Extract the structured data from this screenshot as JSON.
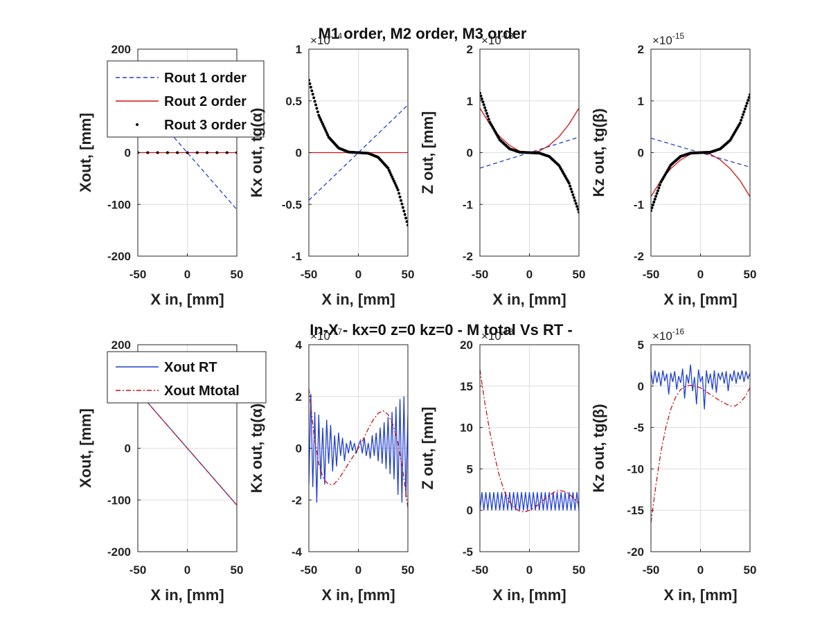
{
  "figure": {
    "top_title": "M1 order, M2 order, M3 order",
    "bottom_title": "In-X - kx=0   z=0   kz=0 - M total Vs RT -"
  },
  "chart_data": [
    {
      "id": "p1",
      "type": "line",
      "xlabel": "X in, [mm]",
      "ylabel": "Xout, [mm]",
      "xlim": [
        -50,
        50
      ],
      "ylim": [
        -200,
        200
      ],
      "xticks": [
        -50,
        0,
        50
      ],
      "yticks": [
        -200,
        -100,
        0,
        100,
        200
      ],
      "ytick_labels": [
        "-200",
        "-100",
        "0",
        "",
        "200"
      ],
      "grid": true,
      "exponent": "",
      "legend": {
        "location": "top-left",
        "entries": [
          "Rout 1 order",
          "Rout 2 order",
          "Rout 3 order"
        ]
      },
      "series": [
        {
          "name": "Rout 1 order",
          "style": "dashed",
          "color": "#1f3fd1",
          "x": [
            -50,
            50
          ],
          "y": [
            110,
            -110
          ]
        },
        {
          "name": "Rout 2 order",
          "style": "solid",
          "color": "#cc1111",
          "x": [
            -50,
            50
          ],
          "y": [
            0,
            0
          ]
        },
        {
          "name": "Rout 3 order",
          "style": "dots",
          "color": "#000000",
          "x": [
            -50,
            50
          ],
          "y": [
            0,
            0
          ]
        }
      ]
    },
    {
      "id": "p2",
      "type": "line",
      "xlabel": "X in, [mm]",
      "ylabel": "Kx out, tg(α)",
      "xlim": [
        -50,
        50
      ],
      "ylim": [
        -1,
        1
      ],
      "xticks": [
        -50,
        0,
        50
      ],
      "yticks": [
        -1,
        -0.5,
        0,
        0.5,
        1
      ],
      "ytick_labels": [
        "-1",
        "-0.5",
        "0",
        "0.5",
        "1"
      ],
      "grid": true,
      "exponent": {
        "base": "×10",
        "power": "-14"
      },
      "series": [
        {
          "name": "Rout 1 order",
          "style": "dashed",
          "color": "#1f3fd1",
          "x": [
            -50,
            50
          ],
          "y": [
            -0.46,
            0.46
          ]
        },
        {
          "name": "Rout 2 order",
          "style": "solid",
          "color": "#cc1111",
          "x": [
            -50,
            50
          ],
          "y": [
            0,
            0
          ]
        },
        {
          "name": "Rout 3 order",
          "style": "dots",
          "color": "#000000",
          "x": [
            -50,
            -40,
            -30,
            -20,
            -10,
            0,
            10,
            20,
            30,
            40,
            50
          ],
          "y": [
            0.7,
            0.36,
            0.15,
            0.045,
            0.006,
            0,
            -0.006,
            -0.045,
            -0.15,
            -0.36,
            -0.7
          ]
        }
      ]
    },
    {
      "id": "p3",
      "type": "line",
      "xlabel": "X in, [mm]",
      "ylabel": "Z out, [mm]",
      "xlim": [
        -50,
        50
      ],
      "ylim": [
        -2,
        2
      ],
      "xticks": [
        -50,
        0,
        50
      ],
      "yticks": [
        -2,
        -1,
        0,
        1,
        2
      ],
      "ytick_labels": [
        "-2",
        "-1",
        "0",
        "1",
        "2"
      ],
      "grid": true,
      "exponent": {
        "base": "×10",
        "power": "-13"
      },
      "series": [
        {
          "name": "Rout 1 order",
          "style": "dashed",
          "color": "#1f3fd1",
          "x": [
            -50,
            50
          ],
          "y": [
            -0.3,
            0.3
          ]
        },
        {
          "name": "Rout 2 order",
          "style": "solid",
          "color": "#cc1111",
          "x": [
            -50,
            -40,
            -30,
            -20,
            -10,
            0,
            10,
            20,
            30,
            40,
            50
          ],
          "y": [
            0.86,
            0.55,
            0.31,
            0.14,
            0.03,
            0,
            0.03,
            0.14,
            0.31,
            0.55,
            0.86
          ]
        },
        {
          "name": "Rout 3 order",
          "style": "dots",
          "color": "#000000",
          "x": [
            -50,
            -40,
            -30,
            -20,
            -10,
            0,
            10,
            20,
            30,
            40,
            50
          ],
          "y": [
            1.15,
            0.59,
            0.25,
            0.074,
            0.009,
            0,
            -0.009,
            -0.074,
            -0.25,
            -0.59,
            -1.15
          ]
        }
      ]
    },
    {
      "id": "p4",
      "type": "line",
      "xlabel": "X in, [mm]",
      "ylabel": "Kz out, tg(β)",
      "xlim": [
        -50,
        50
      ],
      "ylim": [
        -2,
        2
      ],
      "xticks": [
        -50,
        0,
        50
      ],
      "yticks": [
        -2,
        -1,
        0,
        1,
        2
      ],
      "ytick_labels": [
        "-2",
        "-1",
        "0",
        "1",
        "2"
      ],
      "grid": true,
      "exponent": {
        "base": "×10",
        "power": "-15"
      },
      "series": [
        {
          "name": "Rout 1 order",
          "style": "dashed",
          "color": "#1f3fd1",
          "x": [
            -50,
            50
          ],
          "y": [
            0.28,
            -0.28
          ]
        },
        {
          "name": "Rout 2 order",
          "style": "solid",
          "color": "#cc1111",
          "x": [
            -50,
            -40,
            -30,
            -20,
            -10,
            0,
            10,
            20,
            30,
            40,
            50
          ],
          "y": [
            -0.85,
            -0.54,
            -0.31,
            -0.14,
            -0.03,
            0,
            -0.03,
            -0.14,
            -0.31,
            -0.54,
            -0.85
          ]
        },
        {
          "name": "Rout 3 order",
          "style": "dots",
          "color": "#000000",
          "x": [
            -50,
            -40,
            -30,
            -20,
            -10,
            0,
            10,
            20,
            30,
            40,
            50
          ],
          "y": [
            -1.12,
            -0.57,
            -0.24,
            -0.072,
            -0.009,
            0,
            0.009,
            0.072,
            0.24,
            0.57,
            1.12
          ]
        }
      ]
    },
    {
      "id": "p5",
      "type": "line",
      "xlabel": "X in, [mm]",
      "ylabel": "Xout, [mm]",
      "xlim": [
        -50,
        50
      ],
      "ylim": [
        -200,
        200
      ],
      "xticks": [
        -50,
        0,
        50
      ],
      "yticks": [
        -200,
        -100,
        0,
        100,
        200
      ],
      "ytick_labels": [
        "-200",
        "-100",
        "0",
        "",
        "200"
      ],
      "grid": true,
      "exponent": "",
      "legend": {
        "location": "top-left",
        "entries": [
          "Xout RT",
          "Xout  Mtotal"
        ]
      },
      "series": [
        {
          "name": "Xout RT",
          "style": "solid",
          "color": "#1f3fd1",
          "x": [
            -50,
            50
          ],
          "y": [
            110,
            -110
          ]
        },
        {
          "name": "Xout  Mtotal",
          "style": "dashdot",
          "color": "#cc1111",
          "x": [
            -50,
            50
          ],
          "y": [
            110,
            -110
          ]
        }
      ]
    },
    {
      "id": "p6",
      "type": "line",
      "xlabel": "X in, [mm]",
      "ylabel": "Kx out,  tg(α)",
      "xlim": [
        -50,
        50
      ],
      "ylim": [
        -4,
        4
      ],
      "xticks": [
        -50,
        0,
        50
      ],
      "yticks": [
        -4,
        -2,
        0,
        2,
        4
      ],
      "ytick_labels": [
        "-4",
        "-2",
        "0",
        "2",
        "4"
      ],
      "grid": true,
      "exponent": {
        "base": "×10",
        "power": "-17"
      },
      "series": [
        {
          "name": "Xout RT",
          "style": "solid",
          "color": "#1f3fd1",
          "x": [
            -50,
            -48,
            -46,
            -44,
            -42,
            -40,
            -38,
            -36,
            -34,
            -32,
            -30,
            -28,
            -26,
            -24,
            -22,
            -20,
            -18,
            -16,
            -14,
            -12,
            -10,
            -8,
            -6,
            -4,
            -2,
            0,
            2,
            4,
            6,
            8,
            10,
            12,
            14,
            16,
            18,
            20,
            22,
            24,
            26,
            28,
            30,
            32,
            34,
            36,
            38,
            40,
            42,
            44,
            46,
            48,
            50
          ],
          "y": [
            -1.4,
            2.1,
            -1.5,
            1.4,
            -2.1,
            1.3,
            -1.2,
            0.8,
            -1.4,
            1.1,
            -0.6,
            0.9,
            -0.9,
            0.5,
            -0.7,
            0.6,
            -0.3,
            0.4,
            -0.5,
            0.2,
            -0.2,
            0.3,
            -0.1,
            0.2,
            -0.2,
            0.1,
            0.3,
            -0.2,
            0.4,
            -0.3,
            0.2,
            -0.4,
            0.5,
            -0.3,
            0.6,
            -0.5,
            0.8,
            -0.6,
            1.0,
            -0.8,
            1.2,
            -1.0,
            1.4,
            -1.2,
            1.6,
            -1.8,
            1.9,
            -2.1,
            2.0,
            -1.9,
            1.3
          ]
        },
        {
          "name": "Xout  Mtotal",
          "style": "dashdot",
          "color": "#cc1111",
          "x": [
            -50,
            -45,
            -40,
            -35,
            -30,
            -25,
            -20,
            -15,
            -10,
            -5,
            0,
            5,
            10,
            15,
            20,
            25,
            30,
            35,
            40,
            45,
            50
          ],
          "y": [
            2.3,
            0.6,
            -0.6,
            -1.2,
            -1.4,
            -1.4,
            -1.2,
            -0.9,
            -0.6,
            -0.3,
            0,
            0.35,
            0.75,
            1.1,
            1.35,
            1.45,
            1.3,
            0.9,
            0.2,
            -0.9,
            -2.3
          ]
        }
      ]
    },
    {
      "id": "p7",
      "type": "line",
      "xlabel": "X in, [mm]",
      "ylabel": "Z out, [mm]",
      "xlim": [
        -50,
        50
      ],
      "ylim": [
        -5,
        20
      ],
      "xticks": [
        -50,
        0,
        50
      ],
      "yticks": [
        -5,
        0,
        5,
        10,
        15,
        20
      ],
      "ytick_labels": [
        "-5",
        "0",
        "5",
        "10",
        "15",
        "20"
      ],
      "grid": true,
      "exponent": {
        "base": "×10",
        "power": "-13"
      },
      "series": [
        {
          "name": "Xout RT",
          "style": "solid",
          "color": "#1f3fd1",
          "x": [
            -50,
            -48,
            -46,
            -44,
            -42,
            -40,
            -38,
            -36,
            -34,
            -32,
            -30,
            -28,
            -26,
            -24,
            -22,
            -20,
            -18,
            -16,
            -14,
            -12,
            -10,
            -8,
            -6,
            -4,
            -2,
            0,
            2,
            4,
            6,
            8,
            10,
            12,
            14,
            16,
            18,
            20,
            22,
            24,
            26,
            28,
            30,
            32,
            34,
            36,
            38,
            40,
            42,
            44,
            46,
            48,
            50
          ],
          "y": [
            0,
            2.2,
            0,
            2.2,
            0,
            2.2,
            0,
            2.2,
            0,
            2.2,
            0,
            2.2,
            0,
            2.2,
            0,
            2.2,
            0,
            2.2,
            0,
            2.2,
            0,
            2.2,
            0,
            2.2,
            0,
            2.2,
            0,
            2.2,
            0,
            2.2,
            0,
            2.2,
            0,
            2.2,
            0,
            2.2,
            0,
            2.2,
            0,
            2.2,
            0,
            2.2,
            0,
            2.2,
            0,
            2.2,
            0,
            2.2,
            0,
            2.2,
            0
          ]
        },
        {
          "name": "Xout  Mtotal",
          "style": "dashdot",
          "color": "#cc1111",
          "x": [
            -50,
            -45,
            -40,
            -35,
            -30,
            -25,
            -20,
            -15,
            -10,
            -5,
            0,
            5,
            10,
            15,
            20,
            25,
            30,
            35,
            40,
            45,
            50
          ],
          "y": [
            17,
            13,
            9.5,
            6.5,
            4.0,
            2.2,
            1.0,
            0.3,
            -0.1,
            -0.2,
            0,
            0.3,
            0.8,
            1.3,
            1.8,
            2.2,
            2.4,
            2.3,
            2.0,
            1.4,
            0.8
          ]
        }
      ]
    },
    {
      "id": "p8",
      "type": "line",
      "xlabel": "X in, [mm]",
      "ylabel": "Kz out, tg(β)",
      "xlim": [
        -50,
        50
      ],
      "ylim": [
        -20,
        5
      ],
      "xticks": [
        -50,
        0,
        50
      ],
      "yticks": [
        -20,
        -15,
        -10,
        -5,
        0,
        5
      ],
      "ytick_labels": [
        "-20",
        "-15",
        "-10",
        "-5",
        "0",
        "5"
      ],
      "grid": true,
      "exponent": {
        "base": "×10",
        "power": "-16"
      },
      "series": [
        {
          "name": "Xout RT",
          "style": "solid",
          "color": "#1f3fd1",
          "x": [
            -50,
            -48,
            -46,
            -44,
            -42,
            -40,
            -38,
            -36,
            -34,
            -32,
            -30,
            -28,
            -26,
            -24,
            -22,
            -20,
            -18,
            -16,
            -14,
            -12,
            -10,
            -8,
            -6,
            -4,
            -2,
            0,
            2,
            4,
            6,
            8,
            10,
            12,
            14,
            16,
            18,
            20,
            22,
            24,
            26,
            28,
            30,
            32,
            34,
            36,
            38,
            40,
            42,
            44,
            46,
            48,
            50
          ],
          "y": [
            1.8,
            0.2,
            1.9,
            0.4,
            1.7,
            0.0,
            1.9,
            0.6,
            1.5,
            -1.0,
            1.6,
            0.5,
            1.8,
            -0.4,
            1.2,
            0.4,
            2.1,
            -1.5,
            1.4,
            0.3,
            2.6,
            -0.6,
            1.1,
            -2.2,
            2.0,
            0.5,
            1.2,
            -2.8,
            1.9,
            0.3,
            1.5,
            -0.4,
            1.9,
            -0.8,
            1.6,
            0.8,
            1.7,
            0.3,
            1.8,
            -0.6,
            1.5,
            0.6,
            1.9,
            0.3,
            1.7,
            0.8,
            1.9,
            0.5,
            1.8,
            0.9,
            1.6
          ]
        },
        {
          "name": "Xout  Mtotal",
          "style": "dashdot",
          "color": "#cc1111",
          "x": [
            -50,
            -45,
            -40,
            -35,
            -30,
            -25,
            -20,
            -15,
            -10,
            -5,
            0,
            5,
            10,
            15,
            20,
            25,
            30,
            35,
            40,
            45,
            50
          ],
          "y": [
            -16.5,
            -12.0,
            -8.0,
            -5.0,
            -2.8,
            -1.3,
            -0.4,
            0.0,
            0.1,
            0.0,
            -0.2,
            -0.6,
            -1.0,
            -1.4,
            -1.8,
            -2.1,
            -2.4,
            -2.4,
            -2.0,
            -1.3,
            -0.2
          ]
        }
      ]
    }
  ]
}
